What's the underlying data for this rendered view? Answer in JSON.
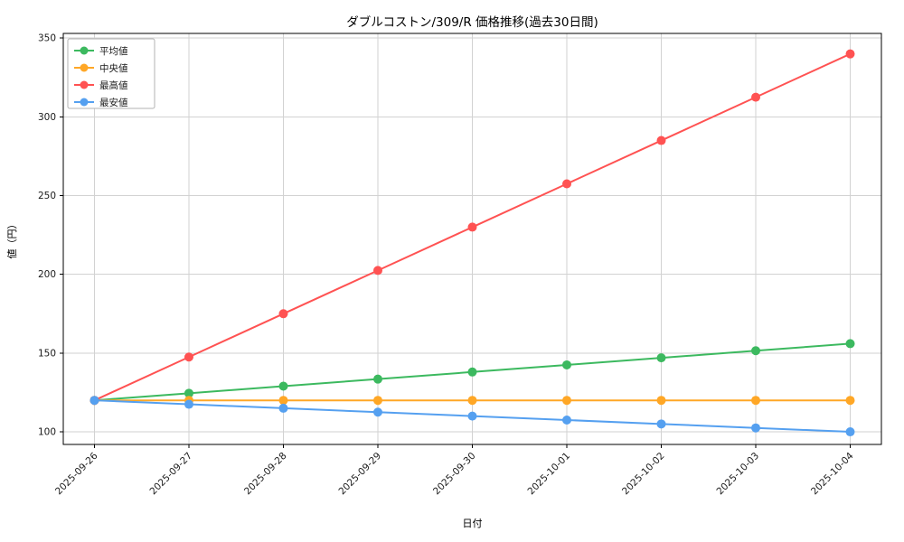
{
  "chart_data": {
    "type": "line",
    "title": "ダブルコストン/309/R 価格推移(過去30日間)",
    "xlabel": "日付",
    "ylabel": "値（円）",
    "x": [
      "2025-09-26",
      "2025-09-27",
      "2025-09-28",
      "2025-09-29",
      "2025-09-30",
      "2025-10-01",
      "2025-10-02",
      "2025-10-03",
      "2025-10-04"
    ],
    "series": [
      {
        "name": "平均値",
        "color": "#3cb95f",
        "values": [
          120,
          124.5,
          129,
          133.5,
          138,
          142.5,
          147,
          151.5,
          156
        ]
      },
      {
        "name": "中央値",
        "color": "#ffa726",
        "values": [
          120,
          120,
          120,
          120,
          120,
          120,
          120,
          120,
          120
        ]
      },
      {
        "name": "最高値",
        "color": "#ff5252",
        "values": [
          120,
          147.5,
          175,
          202.5,
          230,
          257.5,
          285,
          312.5,
          340
        ]
      },
      {
        "name": "最安値",
        "color": "#55a0f0",
        "values": [
          120,
          117.5,
          115,
          112.5,
          110,
          107.5,
          105,
          102.5,
          100
        ]
      }
    ],
    "yticks": [
      100,
      150,
      200,
      250,
      300,
      350
    ],
    "ylim": [
      92,
      353
    ],
    "grid": true,
    "legend_position": "upper-left",
    "colors": {
      "grid": "#d2d2d2",
      "axis": "#000000",
      "tick_label": "#1a1a1a",
      "legend_border": "#b3b3b3"
    }
  }
}
